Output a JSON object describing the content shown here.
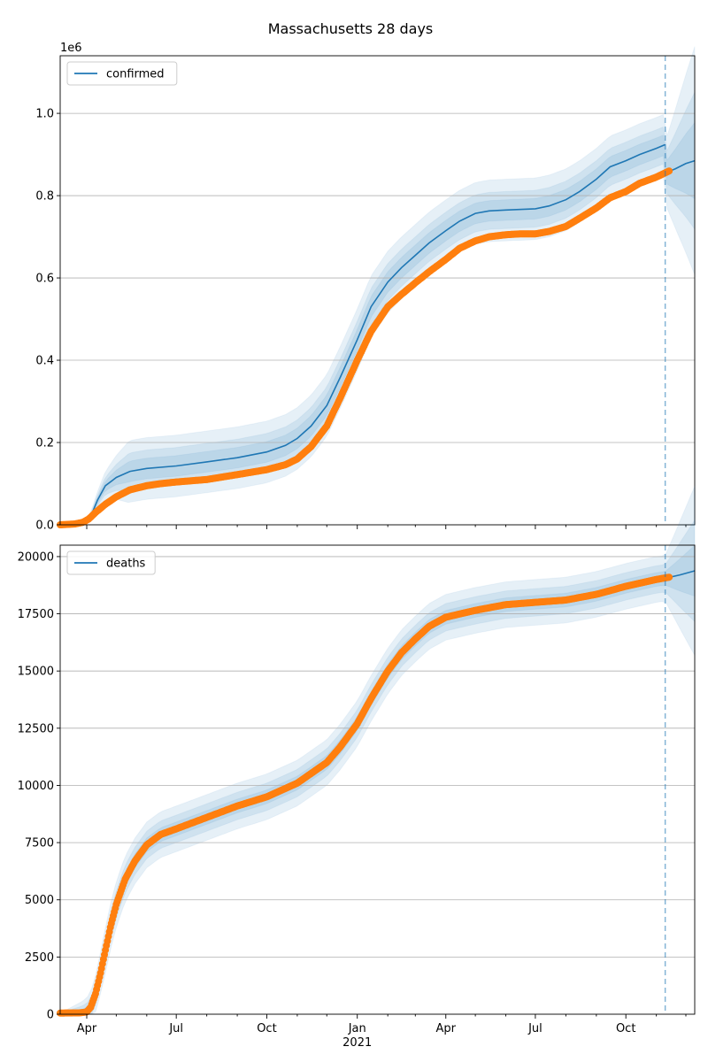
{
  "title": "Massachusetts 28 days",
  "colors": {
    "model": "#1f77b4",
    "observed": "#ff7f0e",
    "grid": "#b0b0b0",
    "forecast_line": "#1f77b4"
  },
  "x_axis": {
    "ticks": [
      {
        "date": "2020-04-01",
        "label": "Apr"
      },
      {
        "date": "2020-07-01",
        "label": "Jul"
      },
      {
        "date": "2020-10-01",
        "label": "Oct"
      },
      {
        "date": "2021-01-01",
        "label": "Jan"
      },
      {
        "date": "2021-04-01",
        "label": "Apr"
      },
      {
        "date": "2021-07-01",
        "label": "Jul"
      },
      {
        "date": "2021-10-01",
        "label": "Oct"
      }
    ],
    "year_label": "2021"
  },
  "chart_data": [
    {
      "type": "line",
      "series_name": "confirmed",
      "legend": "upper-left",
      "offset_label": "1e6",
      "xlim": [
        "2020-03-05",
        "2021-12-10"
      ],
      "ylim": [
        0,
        1.14
      ],
      "yticks": [
        {
          "v": 0.0,
          "label": "0.0"
        },
        {
          "v": 0.2,
          "label": "0.2"
        },
        {
          "v": 0.4,
          "label": "0.4"
        },
        {
          "v": 0.6,
          "label": "0.6"
        },
        {
          "v": 0.8,
          "label": "0.8"
        },
        {
          "v": 1.0,
          "label": "1.0"
        }
      ],
      "grid": "y",
      "forecast_start": "2021-11-10",
      "observed_end": "2021-11-14",
      "model_end": "2021-12-10",
      "observed": [
        [
          "2020-03-05",
          0.0
        ],
        [
          "2020-03-20",
          0.002
        ],
        [
          "2020-03-28",
          0.006
        ],
        [
          "2020-04-03",
          0.014
        ],
        [
          "2020-04-10",
          0.03
        ],
        [
          "2020-04-20",
          0.05
        ],
        [
          "2020-05-01",
          0.068
        ],
        [
          "2020-05-15",
          0.085
        ],
        [
          "2020-06-01",
          0.095
        ],
        [
          "2020-06-15",
          0.1
        ],
        [
          "2020-07-01",
          0.104
        ],
        [
          "2020-08-01",
          0.11
        ],
        [
          "2020-09-01",
          0.122
        ],
        [
          "2020-10-01",
          0.134
        ],
        [
          "2020-10-20",
          0.146
        ],
        [
          "2020-11-01",
          0.16
        ],
        [
          "2020-11-15",
          0.19
        ],
        [
          "2020-12-01",
          0.24
        ],
        [
          "2020-12-15",
          0.31
        ],
        [
          "2021-01-01",
          0.4
        ],
        [
          "2021-01-15",
          0.47
        ],
        [
          "2021-02-01",
          0.53
        ],
        [
          "2021-02-15",
          0.56
        ],
        [
          "2021-03-01",
          0.588
        ],
        [
          "2021-03-15",
          0.615
        ],
        [
          "2021-04-01",
          0.645
        ],
        [
          "2021-04-15",
          0.672
        ],
        [
          "2021-05-01",
          0.69
        ],
        [
          "2021-05-15",
          0.7
        ],
        [
          "2021-06-01",
          0.705
        ],
        [
          "2021-06-15",
          0.707
        ],
        [
          "2021-07-01",
          0.707
        ],
        [
          "2021-07-15",
          0.713
        ],
        [
          "2021-08-01",
          0.725
        ],
        [
          "2021-08-15",
          0.745
        ],
        [
          "2021-09-01",
          0.77
        ],
        [
          "2021-09-15",
          0.795
        ],
        [
          "2021-10-01",
          0.81
        ],
        [
          "2021-10-15",
          0.83
        ],
        [
          "2021-11-01",
          0.845
        ],
        [
          "2021-11-14",
          0.86
        ]
      ],
      "model": [
        [
          "2020-03-30",
          0.0
        ],
        [
          "2020-04-05",
          0.02
        ],
        [
          "2020-04-12",
          0.06
        ],
        [
          "2020-04-20",
          0.095
        ],
        [
          "2020-05-01",
          0.115
        ],
        [
          "2020-05-15",
          0.13
        ],
        [
          "2020-06-01",
          0.137
        ],
        [
          "2020-07-01",
          0.143
        ],
        [
          "2020-08-01",
          0.153
        ],
        [
          "2020-09-01",
          0.163
        ],
        [
          "2020-10-01",
          0.177
        ],
        [
          "2020-10-20",
          0.193
        ],
        [
          "2020-11-01",
          0.21
        ],
        [
          "2020-11-15",
          0.24
        ],
        [
          "2020-12-01",
          0.29
        ],
        [
          "2020-12-15",
          0.36
        ],
        [
          "2021-01-01",
          0.45
        ],
        [
          "2021-01-15",
          0.53
        ],
        [
          "2021-02-01",
          0.59
        ],
        [
          "2021-02-15",
          0.625
        ],
        [
          "2021-03-01",
          0.655
        ],
        [
          "2021-03-15",
          0.685
        ],
        [
          "2021-04-01",
          0.715
        ],
        [
          "2021-04-15",
          0.738
        ],
        [
          "2021-05-01",
          0.757
        ],
        [
          "2021-05-15",
          0.763
        ],
        [
          "2021-06-01",
          0.765
        ],
        [
          "2021-07-01",
          0.768
        ],
        [
          "2021-07-15",
          0.775
        ],
        [
          "2021-08-01",
          0.79
        ],
        [
          "2021-08-15",
          0.81
        ],
        [
          "2021-09-01",
          0.84
        ],
        [
          "2021-09-15",
          0.87
        ],
        [
          "2021-10-01",
          0.885
        ],
        [
          "2021-10-15",
          0.9
        ],
        [
          "2021-11-01",
          0.915
        ],
        [
          "2021-11-10",
          0.924
        ]
      ],
      "model_forecast": [
        [
          "2021-11-10",
          0.855
        ],
        [
          "2021-11-20",
          0.865
        ],
        [
          "2021-12-01",
          0.878
        ],
        [
          "2021-12-10",
          0.885
        ]
      ],
      "band_widths": [
        0.025,
        0.045,
        0.075
      ],
      "band_growth": 0.09
    },
    {
      "type": "line",
      "series_name": "deaths",
      "legend": "upper-left",
      "offset_label": "",
      "xlim": [
        "2020-03-05",
        "2021-12-10"
      ],
      "ylim": [
        0,
        20500
      ],
      "yticks": [
        {
          "v": 0,
          "label": "0"
        },
        {
          "v": 2500,
          "label": "2500"
        },
        {
          "v": 5000,
          "label": "5000"
        },
        {
          "v": 7500,
          "label": "7500"
        },
        {
          "v": 10000,
          "label": "10000"
        },
        {
          "v": 12500,
          "label": "12500"
        },
        {
          "v": 15000,
          "label": "15000"
        },
        {
          "v": 17500,
          "label": "17500"
        },
        {
          "v": 20000,
          "label": "20000"
        }
      ],
      "grid": "y",
      "forecast_start": "2021-11-10",
      "observed_end": "2021-11-14",
      "model_end": "2021-12-10",
      "observed": [
        [
          "2020-03-05",
          50
        ],
        [
          "2020-03-25",
          60
        ],
        [
          "2020-04-01",
          100
        ],
        [
          "2020-04-05",
          300
        ],
        [
          "2020-04-10",
          900
        ],
        [
          "2020-04-15",
          1800
        ],
        [
          "2020-04-20",
          2800
        ],
        [
          "2020-04-25",
          3800
        ],
        [
          "2020-05-01",
          4800
        ],
        [
          "2020-05-10",
          5900
        ],
        [
          "2020-05-20",
          6700
        ],
        [
          "2020-06-01",
          7400
        ],
        [
          "2020-06-15",
          7850
        ],
        [
          "2020-07-01",
          8100
        ],
        [
          "2020-08-01",
          8600
        ],
        [
          "2020-09-01",
          9100
        ],
        [
          "2020-10-01",
          9500
        ],
        [
          "2020-11-01",
          10100
        ],
        [
          "2020-12-01",
          11000
        ],
        [
          "2020-12-15",
          11700
        ],
        [
          "2021-01-01",
          12700
        ],
        [
          "2021-01-15",
          13800
        ],
        [
          "2021-02-01",
          15000
        ],
        [
          "2021-02-15",
          15800
        ],
        [
          "2021-03-01",
          16400
        ],
        [
          "2021-03-15",
          16950
        ],
        [
          "2021-04-01",
          17350
        ],
        [
          "2021-05-01",
          17650
        ],
        [
          "2021-06-01",
          17900
        ],
        [
          "2021-07-01",
          18000
        ],
        [
          "2021-08-01",
          18100
        ],
        [
          "2021-09-01",
          18350
        ],
        [
          "2021-10-01",
          18700
        ],
        [
          "2021-11-01",
          19000
        ],
        [
          "2021-11-14",
          19100
        ]
      ],
      "model": [
        [
          "2020-03-05",
          50
        ],
        [
          "2020-03-25",
          60
        ],
        [
          "2020-04-01",
          100
        ],
        [
          "2020-04-05",
          300
        ],
        [
          "2020-04-10",
          900
        ],
        [
          "2020-04-15",
          1800
        ],
        [
          "2020-04-20",
          2800
        ],
        [
          "2020-04-25",
          3800
        ],
        [
          "2020-05-01",
          4800
        ],
        [
          "2020-05-10",
          5900
        ],
        [
          "2020-05-20",
          6700
        ],
        [
          "2020-06-01",
          7400
        ],
        [
          "2020-06-15",
          7850
        ],
        [
          "2020-07-01",
          8100
        ],
        [
          "2020-08-01",
          8600
        ],
        [
          "2020-09-01",
          9100
        ],
        [
          "2020-10-01",
          9500
        ],
        [
          "2020-11-01",
          10100
        ],
        [
          "2020-12-01",
          11000
        ],
        [
          "2020-12-15",
          11700
        ],
        [
          "2021-01-01",
          12700
        ],
        [
          "2021-01-15",
          13800
        ],
        [
          "2021-02-01",
          15000
        ],
        [
          "2021-02-15",
          15800
        ],
        [
          "2021-03-01",
          16400
        ],
        [
          "2021-03-15",
          16950
        ],
        [
          "2021-04-01",
          17350
        ],
        [
          "2021-05-01",
          17650
        ],
        [
          "2021-06-01",
          17900
        ],
        [
          "2021-07-01",
          18000
        ],
        [
          "2021-08-01",
          18100
        ],
        [
          "2021-09-01",
          18350
        ],
        [
          "2021-10-01",
          18700
        ],
        [
          "2021-11-01",
          19000
        ],
        [
          "2021-11-10",
          19050
        ]
      ],
      "model_forecast": [
        [
          "2021-11-10",
          19050
        ],
        [
          "2021-11-25",
          19200
        ],
        [
          "2021-12-10",
          19380
        ]
      ],
      "band_widths": [
        300,
        600,
        1000
      ],
      "band_growth": 0.09
    }
  ]
}
